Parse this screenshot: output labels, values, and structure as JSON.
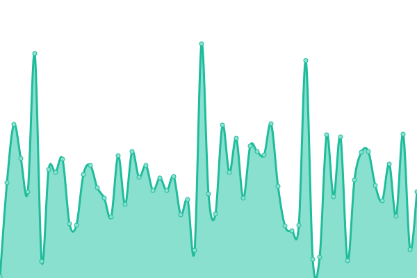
{
  "chart_data": {
    "type": "area",
    "x": [
      0,
      1,
      2,
      3,
      4,
      5,
      6,
      7,
      8,
      9,
      10,
      11,
      12,
      13,
      14,
      15,
      16,
      17,
      18,
      19,
      20,
      21,
      22,
      23,
      24,
      25,
      26,
      27,
      28,
      29,
      30,
      31,
      32,
      33,
      34,
      35,
      36,
      37,
      38,
      39,
      40,
      41,
      42,
      43,
      44,
      45,
      46,
      47,
      48,
      49,
      50,
      51,
      52,
      53,
      54,
      55,
      56,
      57,
      58,
      59,
      60
    ],
    "values": [
      2,
      137,
      221,
      172,
      124,
      323,
      24,
      156,
      152,
      171,
      78,
      76,
      149,
      162,
      130,
      115,
      88,
      176,
      106,
      182,
      145,
      162,
      126,
      144,
      126,
      146,
      91,
      113,
      40,
      337,
      121,
      92,
      220,
      152,
      201,
      115,
      190,
      182,
      177,
      222,
      132,
      75,
      68,
      76,
      313,
      27,
      30,
      206,
      117,
      203,
      25,
      141,
      181,
      182,
      133,
      111,
      164,
      89,
      207,
      41,
      124
    ],
    "ylim": [
      0,
      400
    ],
    "grid": false,
    "axes": false,
    "legend": "none",
    "colors": {
      "line": "#1fbc9c",
      "fill": "#8ae0cf",
      "point_fill": "#8ae0cf",
      "point_stroke": "#1fbc9c"
    }
  }
}
